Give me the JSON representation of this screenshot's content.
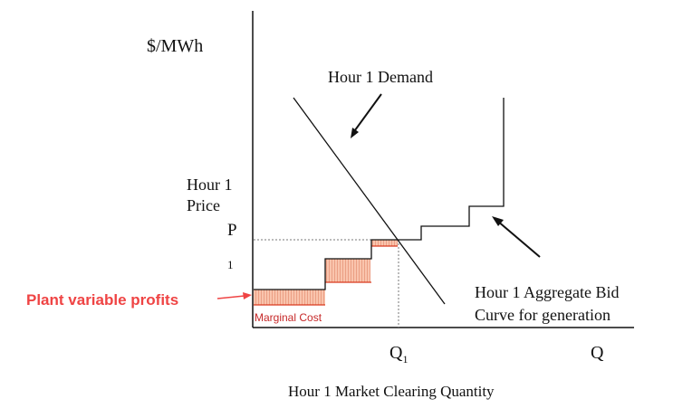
{
  "axis": {
    "y_label": "$/MWh",
    "x_label": "Hour 1 Market Clearing Quantity",
    "q1_main": "Q",
    "q1_sub": "1",
    "q_label": "Q"
  },
  "labels": {
    "demand": "Hour 1 Demand",
    "price_line1": "Hour 1",
    "price_line2": "Price",
    "price_p": "P",
    "price_sub": "1",
    "supply_line1": "Hour 1 Aggregate Bid",
    "supply_line2": "Curve for generation",
    "profits": "Plant variable profits",
    "marginal_cost": "Marginal Cost"
  },
  "colors": {
    "line": "#111111",
    "dotted": "#777777",
    "shade_fill": "#f9c4ad",
    "shade_hatch": "#e8967a",
    "marginal_line": "#d9391f",
    "annotation": "#ef4444"
  }
}
